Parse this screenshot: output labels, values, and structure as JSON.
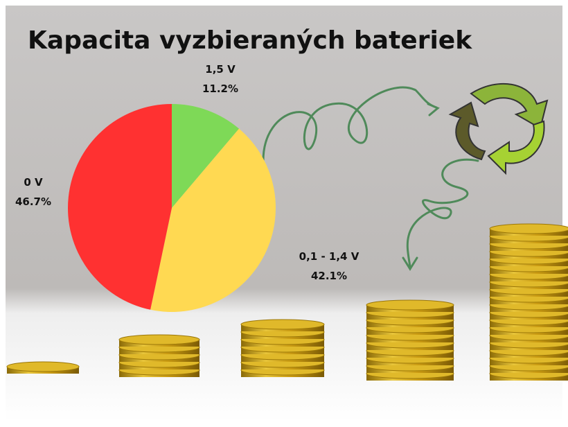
{
  "chart_data": {
    "type": "pie",
    "title": "Kapacita vyzbieraných bateriek",
    "categories": [
      "1,5 V",
      "0,1 - 1,4 V",
      "0 V"
    ],
    "values": [
      11.2,
      42.1,
      46.7
    ],
    "value_labels": [
      "11.2%",
      "42.1%",
      "46.7%"
    ],
    "colors": [
      "#7ed957",
      "#ffd952",
      "#ff3131"
    ]
  }
}
